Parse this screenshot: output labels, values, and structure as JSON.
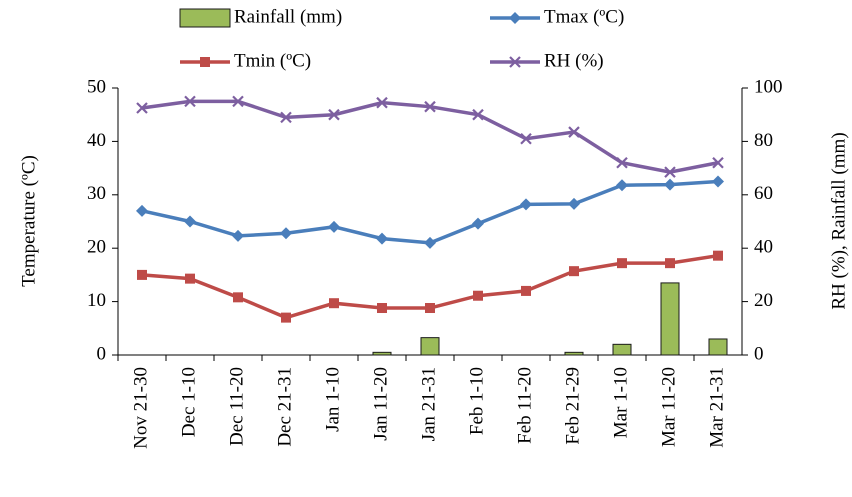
{
  "chart_data": {
    "type": "line",
    "categories": [
      "Nov 21-30",
      "Dec 1-10",
      "Dec 11-20",
      "Dec 21-31",
      "Jan 1-10",
      "Jan 11-20",
      "Jan 21-31",
      "Feb 1-10",
      "Feb 11-20",
      "Feb 21-29",
      "Mar 1-10",
      "Mar 11-20",
      "Mar 21-31"
    ],
    "y_label": "Temperature (ºC)",
    "y2_label": "RH (%), Rainfall (mm)",
    "ylim": [
      0,
      50
    ],
    "yticks": [
      0,
      10,
      20,
      30,
      40,
      50
    ],
    "y2lim": [
      0,
      100
    ],
    "y2ticks": [
      0,
      20,
      40,
      60,
      80,
      100
    ],
    "series": [
      {
        "name": "Rainfall (mm)",
        "type": "bar",
        "axis": "y2",
        "color": "#9bbb59",
        "values": [
          0,
          0,
          0,
          0,
          0,
          1,
          6.5,
          0,
          0,
          1,
          4,
          27,
          6
        ]
      },
      {
        "name": "Tmax (ºC)",
        "type": "line",
        "marker": "diamond",
        "color": "#4a7ebb",
        "values": [
          27,
          25,
          22.3,
          22.8,
          24,
          21.8,
          21,
          24.6,
          28.2,
          28.3,
          31.8,
          31.9,
          32.5
        ]
      },
      {
        "name": "Tmin (ºC)",
        "type": "line",
        "marker": "square",
        "color": "#be4b48",
        "values": [
          15,
          14.3,
          10.8,
          7,
          9.7,
          8.8,
          8.8,
          11.1,
          12,
          15.7,
          17.2,
          17.2,
          18.6
        ]
      },
      {
        "name": "RH (%)",
        "type": "line",
        "marker": "x",
        "axis": "y2",
        "color": "#7d5fa0",
        "values": [
          92.5,
          95,
          95,
          89,
          90,
          94.5,
          93,
          90,
          81,
          83.5,
          72,
          68.5,
          72
        ]
      }
    ]
  }
}
